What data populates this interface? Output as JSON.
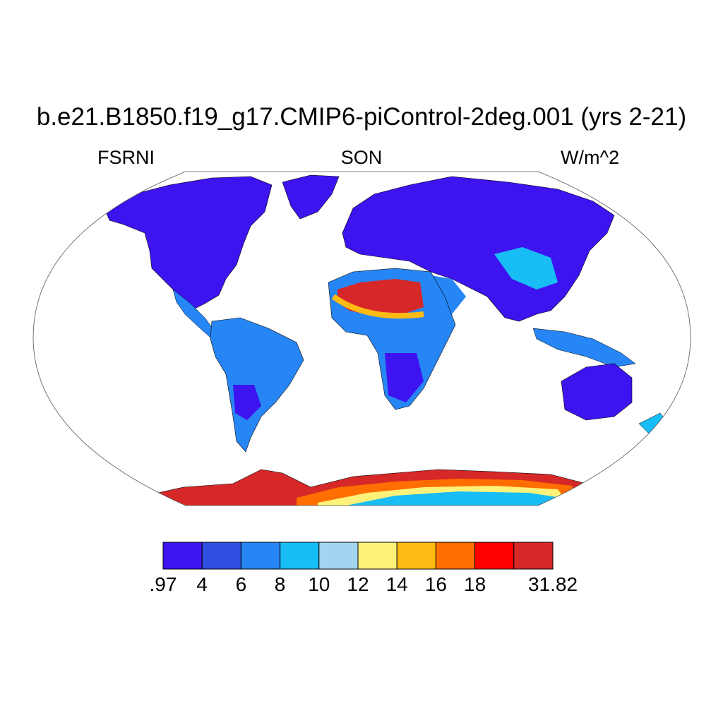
{
  "title": "b.e21.B1850.f19_g17.CMIP6-piControl-2deg.001 (yrs 2-21)",
  "left_label": "FSRNI",
  "center_label": "SON",
  "right_label": "W/m^2",
  "colorbar": {
    "colors": [
      "#3d14f0",
      "#2f4ee0",
      "#2786f5",
      "#18bdf5",
      "#a2d5ef",
      "#fff27a",
      "#ffbb14",
      "#ff6e00",
      "#ff0000",
      "#d62828"
    ],
    "tick_labels": [
      ".97",
      "4",
      "6",
      "8",
      "10",
      "12",
      "14",
      "16",
      "18",
      "",
      "31.82"
    ],
    "min": 0.97,
    "max": 31.82
  },
  "map": {
    "projection": "robinson",
    "land_fill_dominant": "#3d14f0",
    "ocean": "white (no data)"
  }
}
